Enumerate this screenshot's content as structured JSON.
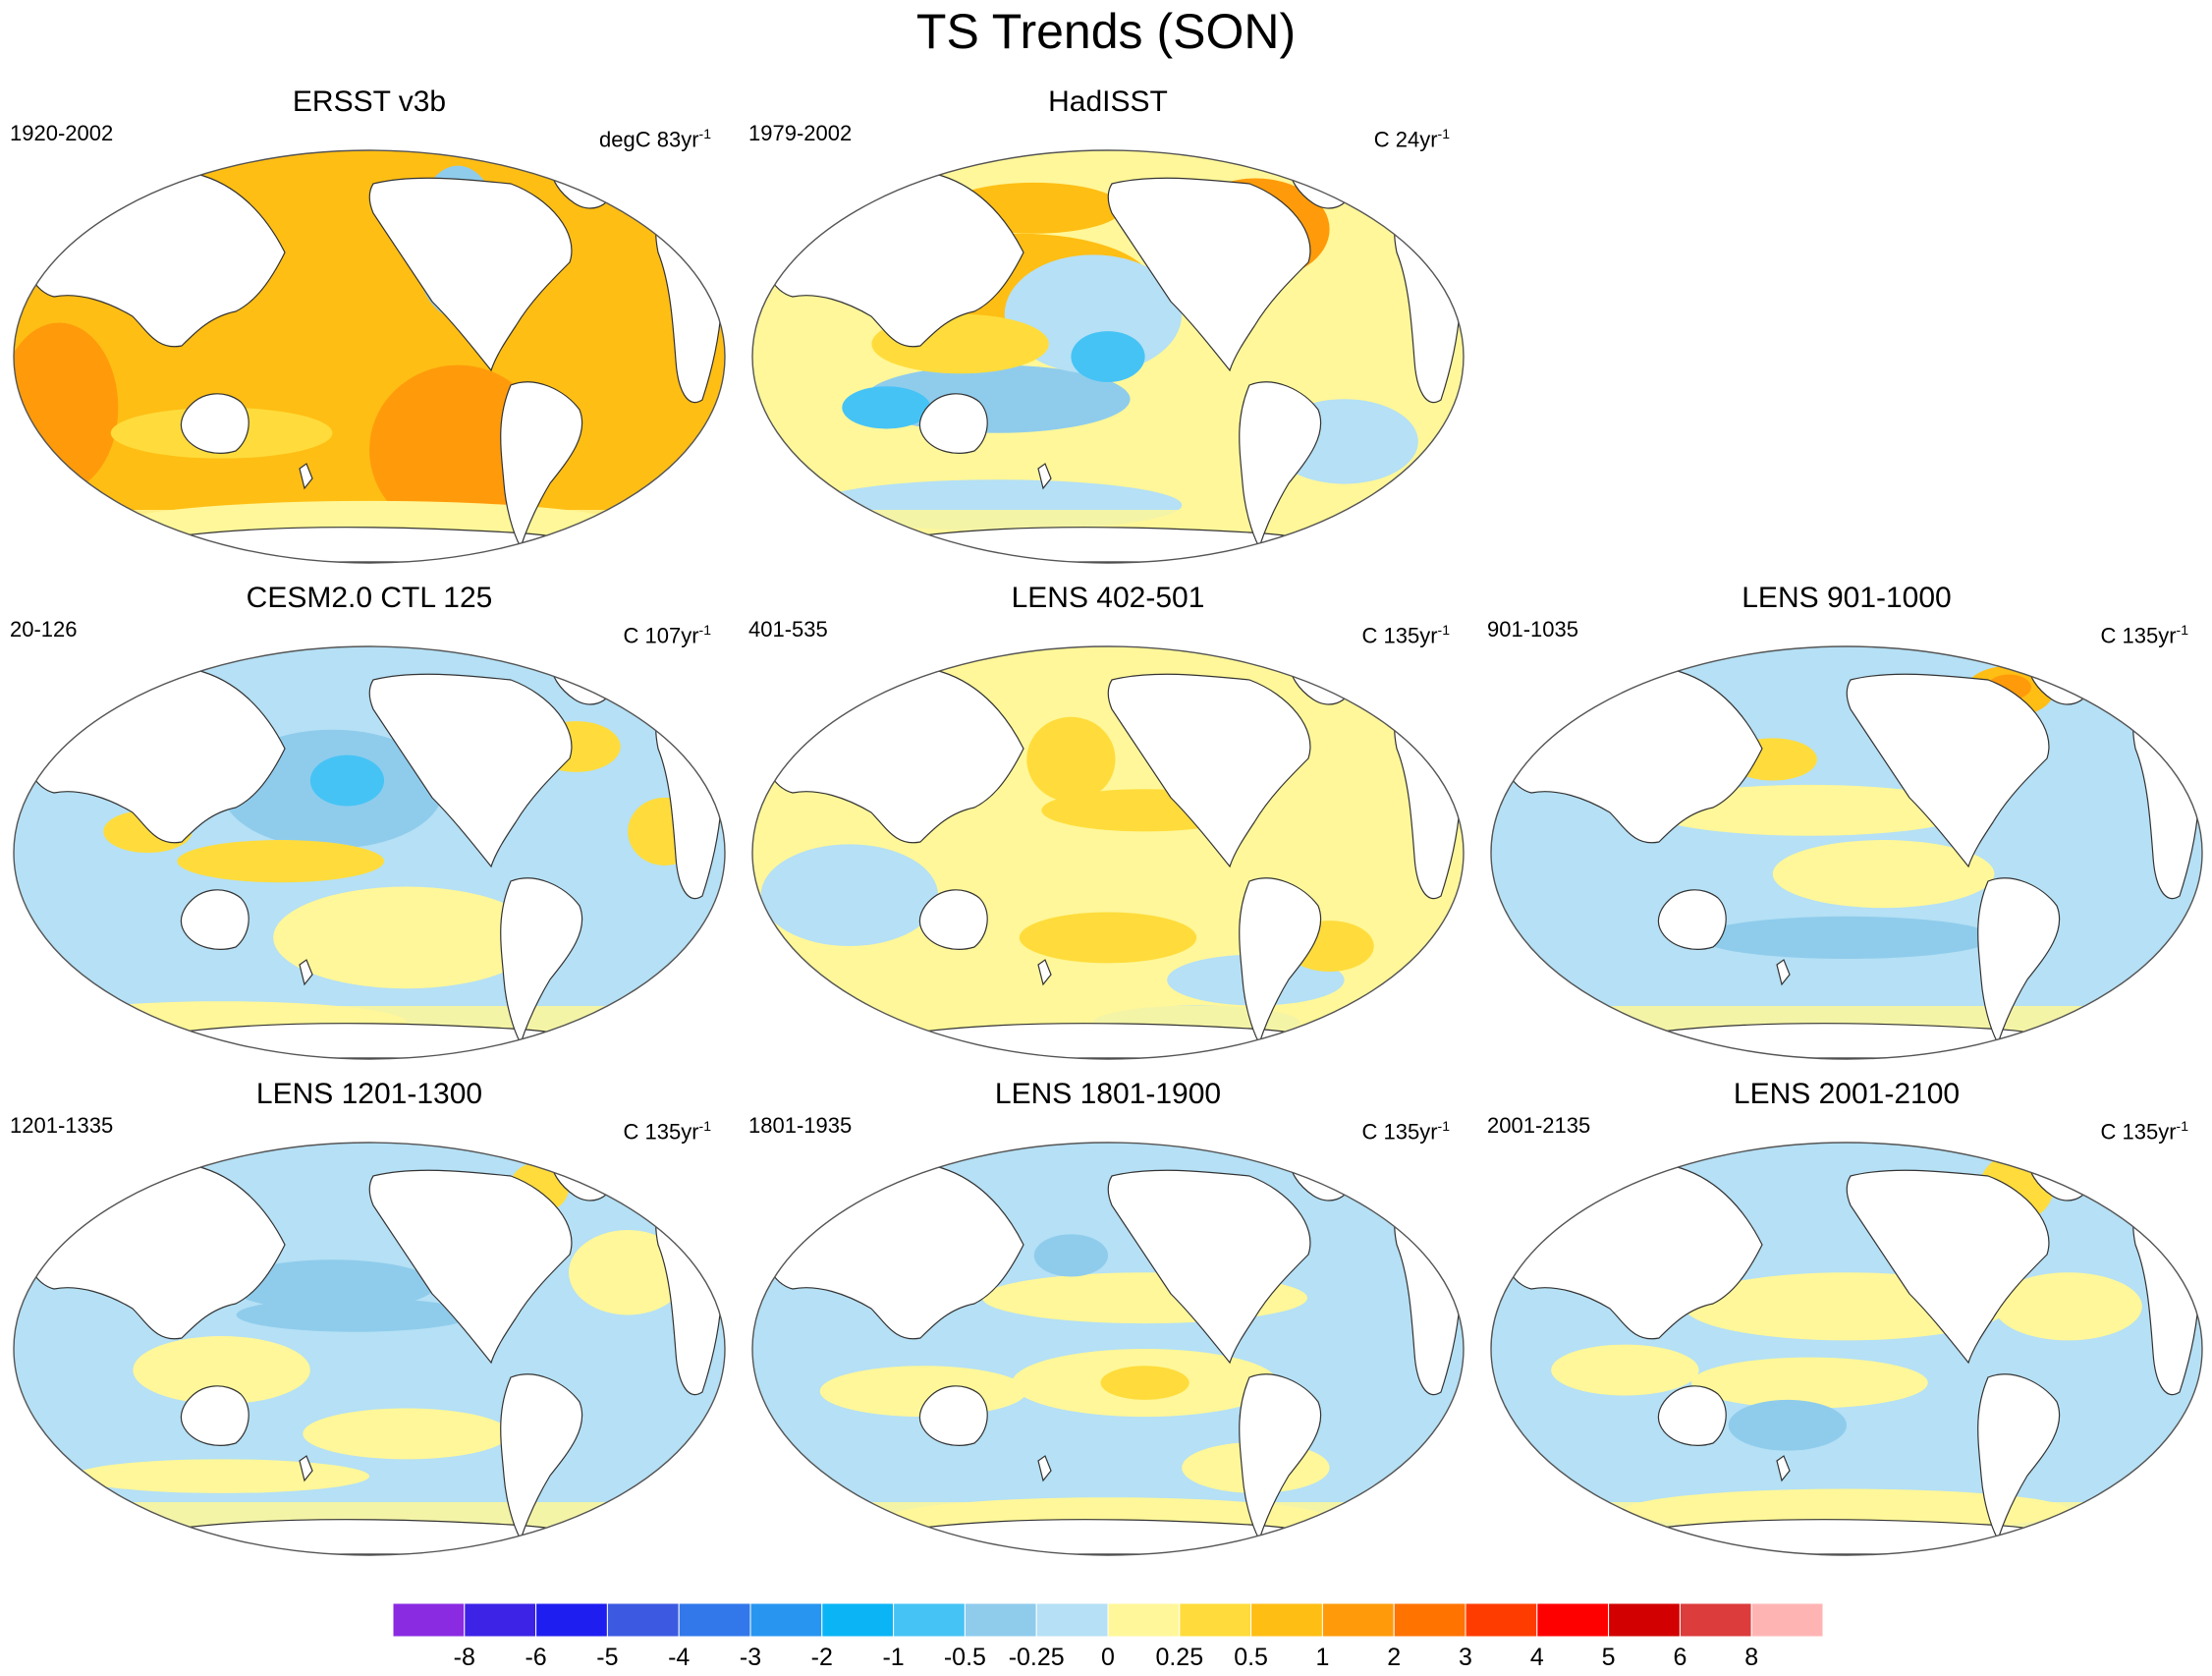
{
  "title": "TS Trends (SON)",
  "colors": {
    "ocean_base": "#fff799",
    "land": "#ffffff",
    "outline": "#333333"
  },
  "chart_data": {
    "type": "heatmap",
    "title": "TS Trends (SON)",
    "colorbar": {
      "labels": [
        "-8",
        "-6",
        "-5",
        "-4",
        "-3",
        "-2",
        "-1",
        "-0.5",
        "-0.25",
        "0",
        "0.25",
        "0.5",
        "1",
        "2",
        "3",
        "4",
        "5",
        "6",
        "8"
      ],
      "colors": [
        "#8a2be2",
        "#3c23e6",
        "#1e1ef0",
        "#3c5ae1",
        "#3278eb",
        "#2896f0",
        "#0ab4f5",
        "#46c3f5",
        "#8fccec",
        "#b5e0f5",
        "#fff799",
        "#ffdc3c",
        "#ffbe14",
        "#ff9b0a",
        "#ff7300",
        "#ff3c00",
        "#ff0000",
        "#d20000",
        "#dc3c3c",
        "#ffb4b4"
      ]
    },
    "panels": [
      {
        "title": "ERSST v3b",
        "period": "1920-2002",
        "units": "degC 83yr",
        "base": "#ffbe14",
        "blobs": [
          [
            "#ff9b0a",
            0.62,
            0.72,
            0.12,
            0.2
          ],
          [
            "#ff9b0a",
            0.08,
            0.62,
            0.08,
            0.2
          ],
          [
            "#8fccec",
            0.62,
            0.23,
            0.06,
            0.18
          ],
          [
            "#46c3f5",
            0.63,
            0.28,
            0.03,
            0.08
          ],
          [
            "#ffdc3c",
            0.3,
            0.68,
            0.15,
            0.06
          ],
          [
            "#fff799",
            0.5,
            0.9,
            0.35,
            0.06
          ],
          [
            "#ffdc3c",
            0.6,
            0.2,
            0.05,
            0.05
          ]
        ]
      },
      {
        "title": "HadISST",
        "period": "1979-2002",
        "units": "C 24yr",
        "base": "#fff799",
        "blobs": [
          [
            "#ffbe14",
            0.38,
            0.33,
            0.18,
            0.12
          ],
          [
            "#ff9b0a",
            0.7,
            0.2,
            0.1,
            0.12
          ],
          [
            "#8fccec",
            0.35,
            0.6,
            0.18,
            0.08
          ],
          [
            "#46c3f5",
            0.2,
            0.62,
            0.06,
            0.05
          ],
          [
            "#b5e0f5",
            0.48,
            0.4,
            0.12,
            0.14
          ],
          [
            "#46c3f5",
            0.5,
            0.5,
            0.05,
            0.06
          ],
          [
            "#ffdc3c",
            0.3,
            0.47,
            0.12,
            0.07
          ],
          [
            "#b5e0f5",
            0.82,
            0.7,
            0.1,
            0.1
          ],
          [
            "#ffbe14",
            0.4,
            0.15,
            0.12,
            0.06
          ],
          [
            "#b5e0f5",
            0.35,
            0.85,
            0.25,
            0.06
          ]
        ]
      },
      {
        "title": "CESM2.0 CTL 125",
        "period": "20-126",
        "units": "C 107yr",
        "base": "#b5e0f5",
        "blobs": [
          [
            "#8fccec",
            0.45,
            0.35,
            0.15,
            0.14
          ],
          [
            "#46c3f5",
            0.47,
            0.33,
            0.05,
            0.06
          ],
          [
            "#ffdc3c",
            0.38,
            0.52,
            0.14,
            0.05
          ],
          [
            "#ffdc3c",
            0.2,
            0.45,
            0.06,
            0.05
          ],
          [
            "#fff799",
            0.55,
            0.7,
            0.18,
            0.12
          ],
          [
            "#ffdc3c",
            0.9,
            0.45,
            0.05,
            0.08
          ],
          [
            "#ffdc3c",
            0.78,
            0.25,
            0.06,
            0.06
          ],
          [
            "#fff799",
            0.3,
            0.9,
            0.25,
            0.05
          ]
        ]
      },
      {
        "title": "LENS 402-501",
        "period": "401-535",
        "units": "C 135yr",
        "base": "#fff799",
        "blobs": [
          [
            "#b5e0f5",
            0.15,
            0.6,
            0.12,
            0.12
          ],
          [
            "#b5e0f5",
            0.7,
            0.8,
            0.12,
            0.06
          ],
          [
            "#ffdc3c",
            0.5,
            0.7,
            0.12,
            0.06
          ],
          [
            "#ffdc3c",
            0.8,
            0.72,
            0.06,
            0.06
          ],
          [
            "#ffdc3c",
            0.45,
            0.28,
            0.06,
            0.1
          ],
          [
            "#ffdc3c",
            0.55,
            0.4,
            0.14,
            0.05
          ],
          [
            "#b5e0f5",
            0.62,
            0.9,
            0.14,
            0.04
          ]
        ]
      },
      {
        "title": "LENS 901-1000",
        "period": "901-1035",
        "units": "C 135yr",
        "base": "#b5e0f5",
        "blobs": [
          [
            "#fff799",
            0.45,
            0.4,
            0.22,
            0.06
          ],
          [
            "#fff799",
            0.55,
            0.55,
            0.15,
            0.08
          ],
          [
            "#ffbe14",
            0.72,
            0.12,
            0.06,
            0.06
          ],
          [
            "#ff9b0a",
            0.72,
            0.11,
            0.03,
            0.03
          ],
          [
            "#ffbe14",
            0.18,
            0.08,
            0.08,
            0.03
          ],
          [
            "#ffdc3c",
            0.4,
            0.28,
            0.06,
            0.05
          ],
          [
            "#8fccec",
            0.5,
            0.7,
            0.2,
            0.05
          ]
        ]
      },
      {
        "title": "LENS 1201-1300",
        "period": "1201-1335",
        "units": "C 135yr",
        "base": "#b5e0f5",
        "blobs": [
          [
            "#8fccec",
            0.45,
            0.35,
            0.14,
            0.06
          ],
          [
            "#8fccec",
            0.48,
            0.42,
            0.16,
            0.04
          ],
          [
            "#fff799",
            0.3,
            0.55,
            0.12,
            0.08
          ],
          [
            "#fff799",
            0.55,
            0.7,
            0.14,
            0.06
          ],
          [
            "#ffdc3c",
            0.73,
            0.12,
            0.04,
            0.06
          ],
          [
            "#fff799",
            0.85,
            0.32,
            0.08,
            0.1
          ],
          [
            "#fff799",
            0.3,
            0.8,
            0.2,
            0.04
          ]
        ]
      },
      {
        "title": "LENS 1801-1900",
        "period": "1801-1935",
        "units": "C 135yr",
        "base": "#b5e0f5",
        "blobs": [
          [
            "#fff799",
            0.55,
            0.38,
            0.22,
            0.06
          ],
          [
            "#fff799",
            0.55,
            0.58,
            0.18,
            0.08
          ],
          [
            "#ffdc3c",
            0.55,
            0.58,
            0.06,
            0.04
          ],
          [
            "#fff799",
            0.25,
            0.6,
            0.14,
            0.06
          ],
          [
            "#fff799",
            0.7,
            0.78,
            0.1,
            0.06
          ],
          [
            "#8fccec",
            0.45,
            0.28,
            0.05,
            0.05
          ],
          [
            "#fff799",
            0.5,
            0.9,
            0.3,
            0.05
          ]
        ]
      },
      {
        "title": "LENS 2001-2100",
        "period": "2001-2135",
        "units": "C 135yr",
        "base": "#b5e0f5",
        "blobs": [
          [
            "#fff799",
            0.5,
            0.4,
            0.22,
            0.08
          ],
          [
            "#fff799",
            0.45,
            0.58,
            0.16,
            0.06
          ],
          [
            "#8fccec",
            0.42,
            0.68,
            0.08,
            0.06
          ],
          [
            "#ffdc3c",
            0.73,
            0.12,
            0.05,
            0.08
          ],
          [
            "#fff799",
            0.8,
            0.4,
            0.1,
            0.08
          ],
          [
            "#fff799",
            0.2,
            0.55,
            0.1,
            0.06
          ],
          [
            "#fff799",
            0.5,
            0.88,
            0.3,
            0.05
          ]
        ]
      }
    ]
  }
}
